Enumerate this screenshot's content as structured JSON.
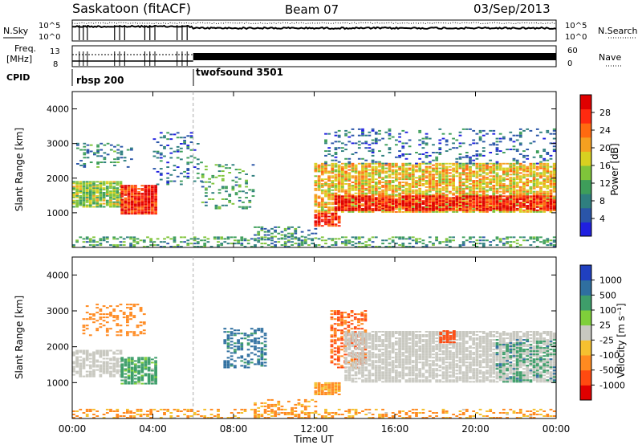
{
  "header": {
    "station": "Saskatoon (fitACF)",
    "beam": "Beam 07",
    "date": "03/Sep/2013"
  },
  "top_panels": {
    "nsky_label": "N.Sky",
    "nsearch_label": "N.Search",
    "freq_label_line1": "Freq.",
    "freq_label_line2": "[MHz]",
    "nave_label": "Nave",
    "cpid_label": "CPID",
    "noise_ticks_left": [
      "10^5",
      "10^0"
    ],
    "noise_ticks_right": [
      "10^5",
      "10^0"
    ],
    "freq_ticks": [
      "13",
      "8"
    ],
    "nave_ticks": [
      "60",
      "0"
    ],
    "cpid_segments": [
      {
        "name": "rbsp 200",
        "start_hour": 0,
        "end_hour": 6.0
      },
      {
        "name": "twofsound 3501",
        "start_hour": 6.0,
        "end_hour": 24
      }
    ]
  },
  "chart_data": [
    {
      "type": "heatmap",
      "quantity": "Power",
      "ylabel": "Slant Range [km]",
      "xlabel": "Time UT",
      "xlim_hours": [
        0,
        24
      ],
      "ylim_km": [
        0,
        4500
      ],
      "y_ticks": [
        "1000",
        "2000",
        "3000",
        "4000"
      ],
      "x_ticks": [
        "00:00",
        "04:00",
        "08:00",
        "12:00",
        "16:00",
        "20:00",
        "00:00"
      ],
      "colorbar": {
        "label": "Power [dB]",
        "ticks": [
          "28",
          "24",
          "20",
          "16",
          "12",
          "8",
          "4"
        ],
        "range": [
          0,
          30
        ],
        "colors": [
          "#2020e0",
          "#2a55a8",
          "#2f7f7f",
          "#3e9e5a",
          "#7fc43a",
          "#d8d020",
          "#f5a020",
          "#ff6a10",
          "#ff2a10",
          "#e00000"
        ]
      },
      "regions": [
        {
          "t0": 0.0,
          "t1": 2.4,
          "r0": 1150,
          "r1": 1900,
          "level": 14,
          "density": 0.9
        },
        {
          "t0": 2.4,
          "t1": 4.2,
          "r0": 950,
          "r1": 1800,
          "level": 26,
          "density": 0.95
        },
        {
          "t0": 0.2,
          "t1": 3.0,
          "r0": 2300,
          "r1": 3000,
          "level": 8,
          "density": 0.25
        },
        {
          "t0": 4.0,
          "t1": 6.5,
          "r0": 1800,
          "r1": 3300,
          "level": 6,
          "density": 0.2
        },
        {
          "t0": 6.4,
          "t1": 9.0,
          "r0": 1100,
          "r1": 2400,
          "level": 10,
          "density": 0.25
        },
        {
          "t0": 9.0,
          "t1": 12.0,
          "r0": 200,
          "r1": 600,
          "level": 8,
          "density": 0.3
        },
        {
          "t0": 12.0,
          "t1": 13.2,
          "r0": 600,
          "r1": 1000,
          "level": 26,
          "density": 0.85
        },
        {
          "t0": 12.0,
          "t1": 24.0,
          "r0": 1000,
          "r1": 2400,
          "level": 18,
          "density": 0.8
        },
        {
          "t0": 13.0,
          "t1": 24.0,
          "r0": 1050,
          "r1": 1500,
          "level": 27,
          "density": 0.85
        },
        {
          "t0": 12.5,
          "t1": 24.0,
          "r0": 2400,
          "r1": 3400,
          "level": 6,
          "density": 0.2
        },
        {
          "t0": 0.0,
          "t1": 24.0,
          "r0": 0,
          "r1": 300,
          "level": 10,
          "density": 0.4
        }
      ]
    },
    {
      "type": "heatmap",
      "quantity": "Velocity",
      "ylabel": "Slant Range [km]",
      "xlabel": "Time UT",
      "xlim_hours": [
        0,
        24
      ],
      "ylim_km": [
        0,
        4500
      ],
      "y_ticks": [
        "1000",
        "2000",
        "3000",
        "4000"
      ],
      "x_ticks": [
        "00:00",
        "04:00",
        "08:00",
        "12:00",
        "16:00",
        "20:00",
        "00:00"
      ],
      "colorbar": {
        "label": "Velocity [m s⁻¹]",
        "ticks": [
          "1000",
          "500",
          "100",
          "25",
          "-25",
          "-100",
          "-500",
          "-1000"
        ],
        "colors": [
          "#2040c0",
          "#2f6fa0",
          "#3e9e6a",
          "#7fcf3a",
          "#c8c8c0",
          "#f5c030",
          "#ff8a20",
          "#ff4a10",
          "#e00000"
        ]
      },
      "regions": [
        {
          "t0": 0.0,
          "t1": 2.4,
          "r0": 1150,
          "r1": 1900,
          "vel": 0,
          "density": 0.7
        },
        {
          "t0": 2.4,
          "t1": 4.2,
          "r0": 950,
          "r1": 1700,
          "vel": 120,
          "density": 0.8
        },
        {
          "t0": 0.5,
          "t1": 3.5,
          "r0": 2300,
          "r1": 3200,
          "vel": -300,
          "density": 0.3
        },
        {
          "t0": 7.5,
          "t1": 9.5,
          "r0": 1400,
          "r1": 2500,
          "vel": 300,
          "density": 0.45
        },
        {
          "t0": 9.0,
          "t1": 12.0,
          "r0": 0,
          "r1": 500,
          "vel": -150,
          "density": 0.35
        },
        {
          "t0": 12.0,
          "t1": 13.2,
          "r0": 650,
          "r1": 1000,
          "vel": -150,
          "density": 0.9
        },
        {
          "t0": 12.8,
          "t1": 14.5,
          "r0": 1400,
          "r1": 3000,
          "vel": -500,
          "density": 0.5
        },
        {
          "t0": 13.5,
          "t1": 24.0,
          "r0": 1000,
          "r1": 2400,
          "vel": 0,
          "density": 0.8
        },
        {
          "t0": 18.2,
          "t1": 19.0,
          "r0": 2100,
          "r1": 2450,
          "vel": -600,
          "density": 0.7
        },
        {
          "t0": 21.0,
          "t1": 24.0,
          "r0": 1000,
          "r1": 2200,
          "vel": 200,
          "density": 0.35
        },
        {
          "t0": 0.0,
          "t1": 24.0,
          "r0": 0,
          "r1": 250,
          "vel": -120,
          "density": 0.4
        }
      ]
    }
  ],
  "colors": {
    "axis": "#000000",
    "background": "#ffffff",
    "ground_scatter": "#c8c8c0"
  }
}
